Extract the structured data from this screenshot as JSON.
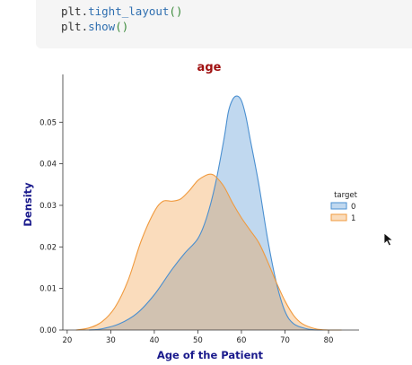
{
  "code": {
    "lines": [
      {
        "obj": "plt.",
        "fn": "tight_layout",
        "parens": "()"
      },
      {
        "obj": "plt.",
        "fn": "show",
        "parens": "()"
      }
    ]
  },
  "chart_data": {
    "type": "area",
    "title": "age",
    "xlabel": "Age of the Patient",
    "ylabel": "Density",
    "xlim": [
      19,
      87
    ],
    "ylim": [
      0,
      0.0615
    ],
    "xticks": [
      20,
      30,
      40,
      50,
      60,
      70,
      80
    ],
    "yticks": [
      0.0,
      0.01,
      0.02,
      0.03,
      0.04,
      0.05
    ],
    "ytick_labels": [
      "0.00",
      "0.01",
      "0.02",
      "0.03",
      "0.04",
      "0.05"
    ],
    "grid": false,
    "legend": {
      "title": "target",
      "placement": "right"
    },
    "colors": {
      "title": "#a01010",
      "labels": "#1a1a8c",
      "series0": "#4a8fd0",
      "series1": "#f09a3e"
    },
    "series": [
      {
        "name": "0",
        "x": [
          25,
          28,
          32,
          36,
          40,
          44,
          47,
          50,
          52,
          54,
          56,
          57,
          58,
          59,
          60,
          61,
          62,
          64,
          66,
          68,
          70,
          72,
          75,
          78,
          81
        ],
        "y": [
          0.0,
          0.0003,
          0.0015,
          0.004,
          0.0085,
          0.0145,
          0.0185,
          0.022,
          0.027,
          0.035,
          0.046,
          0.0525,
          0.0555,
          0.0563,
          0.0552,
          0.0515,
          0.046,
          0.035,
          0.022,
          0.0115,
          0.0045,
          0.0015,
          0.0003,
          0.0,
          0.0
        ]
      },
      {
        "name": "1",
        "x": [
          22,
          25,
          28,
          31,
          34,
          37,
          40,
          42,
          44,
          46,
          48,
          50,
          52,
          53,
          54,
          56,
          58,
          60,
          62,
          64,
          66,
          68,
          70,
          72,
          74,
          77,
          80,
          83
        ],
        "y": [
          0.0,
          0.0005,
          0.002,
          0.0055,
          0.012,
          0.0215,
          0.0285,
          0.031,
          0.031,
          0.0315,
          0.0335,
          0.036,
          0.0373,
          0.0375,
          0.037,
          0.0345,
          0.0305,
          0.027,
          0.024,
          0.021,
          0.0165,
          0.0115,
          0.007,
          0.0035,
          0.0015,
          0.0003,
          0.0,
          0.0
        ]
      }
    ]
  }
}
